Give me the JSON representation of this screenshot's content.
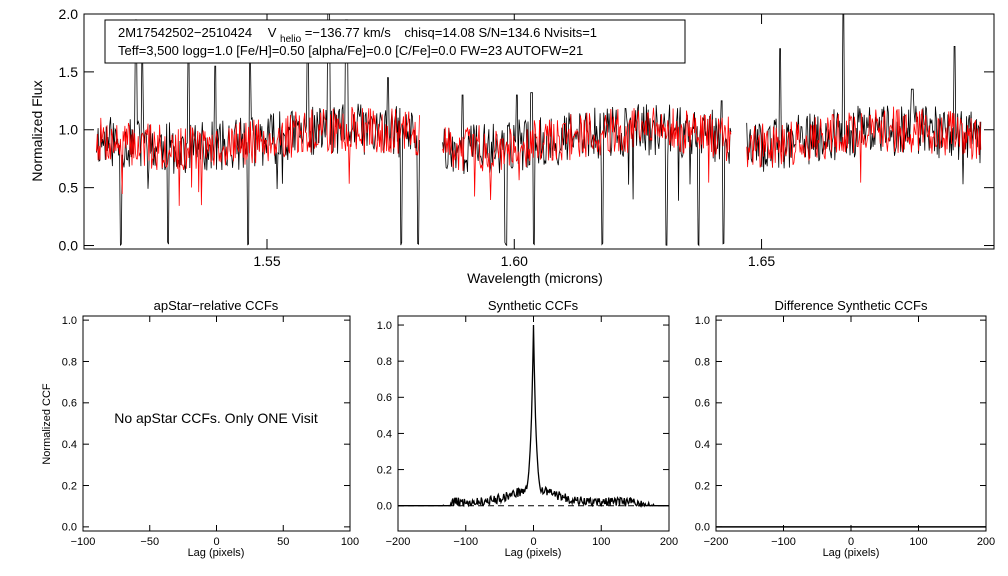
{
  "chart_data": [
    {
      "type": "line",
      "id": "spectrum",
      "title": "",
      "xlabel": "Wavelength (microns)",
      "ylabel": "Normalized Flux",
      "xlim": [
        1.513,
        1.697
      ],
      "ylim": [
        -0.03,
        2.0
      ],
      "xticks": [
        1.55,
        1.6,
        1.65
      ],
      "xtick_labels": [
        "1.55",
        "1.60",
        "1.65"
      ],
      "yticks": [
        0.0,
        0.5,
        1.0,
        1.5,
        2.0
      ],
      "ytick_labels": [
        "0.0",
        "0.5",
        "1.0",
        "1.5",
        "2.0"
      ],
      "chips": [
        [
          1.5155,
          1.581
        ],
        [
          1.5855,
          1.644
        ],
        [
          1.647,
          1.6945
        ]
      ],
      "series": [
        {
          "name": "observed",
          "color": "#000000",
          "seed": 11,
          "absorption_lines": [
            1.5205,
            1.5248,
            1.53,
            1.5342,
            1.5463,
            1.5583,
            1.5625,
            1.5661,
            1.5772,
            1.5806,
            1.5983,
            1.6005,
            1.6039,
            1.6178,
            1.6308,
            1.6372,
            1.6423,
            1.6537,
            1.689
          ],
          "emission_spikes": [
            [
              1.5235,
              1.95
            ],
            [
              1.5248,
              1.6
            ],
            [
              1.5342,
              1.75
            ],
            [
              1.5395,
              1.55
            ],
            [
              1.5465,
              1.65
            ],
            [
              1.5583,
              1.88
            ],
            [
              1.5625,
              2.0
            ],
            [
              1.5661,
              1.95
            ],
            [
              1.5745,
              1.45
            ],
            [
              1.5895,
              1.3
            ],
            [
              1.6005,
              1.3
            ],
            [
              1.6035,
              1.32
            ],
            [
              1.642,
              1.25
            ],
            [
              1.6537,
              1.7
            ],
            [
              1.6666,
              2.0
            ],
            [
              1.6805,
              1.35
            ],
            [
              1.689,
              1.72
            ]
          ]
        },
        {
          "name": "synthetic",
          "color": "#ff0000",
          "seed": 7
        }
      ],
      "annotation": {
        "star": "2M17542502−2510424",
        "vhelio_label": "V",
        "vhelio_subscript": "helio",
        "vhelio_value": "=−136.77 km/s",
        "stats": "chisq=14.08  S/N=134.6  Nvisits=1",
        "params": "Teff=3,500 logg=1.0 [Fe/H]=0.50 [alpha/Fe]=0.0 [C/Fe]=0.0 FW=23 AUTOFW=21"
      }
    },
    {
      "type": "line",
      "id": "apstar_ccf",
      "title": "apStar−relative CCFs",
      "xlabel": "Lag (pixels)",
      "ylabel": "Normalized CCF",
      "xlim": [
        -100,
        100
      ],
      "ylim": [
        -0.02,
        1.02
      ],
      "xticks": [
        -100,
        -50,
        0,
        50,
        100
      ],
      "xtick_labels": [
        "−100",
        "−50",
        "0",
        "50",
        "100"
      ],
      "yticks": [
        0.0,
        0.2,
        0.4,
        0.6,
        0.8,
        1.0
      ],
      "ytick_labels": [
        "0.0",
        "0.2",
        "0.4",
        "0.6",
        "0.8",
        "1.0"
      ],
      "message": "No apStar CCFs.  Only ONE Visit",
      "series": []
    },
    {
      "type": "line",
      "id": "synthetic_ccf",
      "title": "Synthetic CCFs",
      "xlabel": "Lag (pixels)",
      "ylabel": "",
      "xlim": [
        -200,
        200
      ],
      "ylim": [
        -0.14,
        1.05
      ],
      "xticks": [
        -200,
        -100,
        0,
        100,
        200
      ],
      "xtick_labels": [
        "−200",
        "−100",
        "0",
        "100",
        "200"
      ],
      "yticks": [
        0.0,
        0.2,
        0.4,
        0.6,
        0.8,
        1.0
      ],
      "ytick_labels": [
        "0.0",
        "0.2",
        "0.4",
        "0.6",
        "0.8",
        "1.0"
      ],
      "baseline": 0.0,
      "series": [
        {
          "name": "ccf",
          "color": "#000000",
          "peak_lag": 0,
          "peak_value": 1.0,
          "seed": 5
        }
      ]
    },
    {
      "type": "line",
      "id": "difference_ccf",
      "title": "Difference Synthetic CCFs",
      "xlabel": "Lag (pixels)",
      "ylabel": "",
      "xlim": [
        -200,
        200
      ],
      "ylim": [
        -0.02,
        1.02
      ],
      "xticks": [
        -200,
        -100,
        0,
        100,
        200
      ],
      "xtick_labels": [
        "−200",
        "−100",
        "0",
        "100",
        "200"
      ],
      "yticks": [
        0.0,
        0.2,
        0.4,
        0.6,
        0.8,
        1.0
      ],
      "ytick_labels": [
        "0.0",
        "0.2",
        "0.4",
        "0.6",
        "0.8",
        "1.0"
      ],
      "series": [
        {
          "name": "difference",
          "color": "#000000",
          "value": 0.0
        }
      ]
    }
  ]
}
